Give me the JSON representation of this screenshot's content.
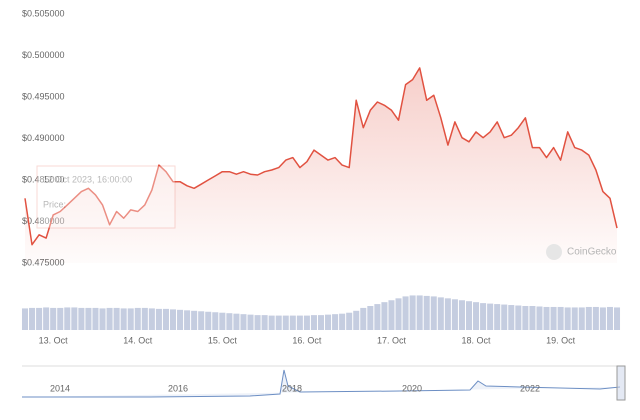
{
  "chart_data": {
    "type": "line",
    "categories": [
      null,
      null,
      null,
      null,
      "13. Oct",
      null,
      null,
      null,
      null,
      null,
      null,
      null,
      null,
      null,
      null,
      null,
      "14. Oct",
      null,
      null,
      null,
      null,
      null,
      null,
      null,
      null,
      null,
      null,
      null,
      "15. Oct",
      null,
      null,
      null,
      null,
      null,
      null,
      null,
      null,
      null,
      null,
      null,
      "16. Oct",
      null,
      null,
      null,
      null,
      null,
      null,
      null,
      null,
      null,
      null,
      null,
      "17. Oct",
      null,
      null,
      null,
      null,
      null,
      null,
      null,
      null,
      null,
      null,
      null,
      "18. Oct",
      null,
      null,
      null,
      null,
      null,
      null,
      null,
      null,
      null,
      null,
      null,
      "19. Oct",
      null,
      null,
      null,
      null,
      null,
      null,
      null,
      null
    ],
    "series": [
      {
        "color": "#e15241",
        "values": [
          0.4828,
          0.4772,
          0.4784,
          0.478,
          0.4808,
          0.4812,
          0.482,
          0.4828,
          0.4836,
          0.484,
          0.4832,
          0.482,
          0.4796,
          0.4812,
          0.4804,
          0.4814,
          0.4812,
          0.482,
          0.4838,
          0.4868,
          0.486,
          0.4848,
          0.4848,
          0.4843,
          0.484,
          0.4845,
          0.485,
          0.4855,
          0.486,
          0.486,
          0.4857,
          0.486,
          0.4857,
          0.4856,
          0.486,
          0.4862,
          0.4865,
          0.4874,
          0.4877,
          0.4865,
          0.4872,
          0.4886,
          0.488,
          0.4874,
          0.4877,
          0.4868,
          0.4865,
          0.4946,
          0.4913,
          0.4934,
          0.4944,
          0.494,
          0.4934,
          0.4922,
          0.4965,
          0.4971,
          0.4985,
          0.4946,
          0.4952,
          0.4925,
          0.4892,
          0.492,
          0.4901,
          0.4896,
          0.4908,
          0.4901,
          0.4908,
          0.492,
          0.4901,
          0.4904,
          0.4913,
          0.4925,
          0.4889,
          0.4889,
          0.4877,
          0.4889,
          0.4874,
          0.4908,
          0.4889,
          0.4886,
          0.488,
          0.4862,
          0.4836,
          0.4828,
          0.4792
        ]
      },
      {
        "color": "#c5cde0",
        "type": "bar",
        "axis": "y2",
        "values": [
          45,
          46,
          46,
          47,
          46,
          46,
          47,
          47,
          46,
          46,
          46,
          45,
          46,
          46,
          45,
          45,
          46,
          46,
          45,
          44,
          44,
          43,
          42,
          41,
          40,
          39,
          38,
          37,
          36,
          35,
          34,
          33,
          32,
          31,
          31,
          30,
          30,
          30,
          30,
          30,
          30,
          31,
          31,
          32,
          33,
          34,
          36,
          40,
          46,
          50,
          54,
          58,
          62,
          66,
          70,
          72,
          72,
          71,
          70,
          68,
          66,
          64,
          62,
          60,
          58,
          56,
          55,
          54,
          53,
          52,
          51,
          50,
          50,
          49,
          48,
          48,
          48,
          47,
          47,
          47,
          48,
          48,
          47,
          48,
          47
        ]
      }
    ],
    "ylim": [
      0.475,
      0.505
    ],
    "yticks": [
      {
        "value": 0.475,
        "label": "$0.475000"
      },
      {
        "value": 0.48,
        "label": "$0.480000"
      },
      {
        "value": 0.485,
        "label": "$0.485000"
      },
      {
        "value": 0.49,
        "label": "$0.490000"
      },
      {
        "value": 0.495,
        "label": "$0.495000"
      },
      {
        "value": 0.5,
        "label": "$0.500000"
      },
      {
        "value": 0.505,
        "label": "$0.505000"
      }
    ],
    "y2lim": [
      0,
      100
    ],
    "grid": false,
    "watermark": "CoinGecko",
    "tooltip": {
      "title": "12 Oct 2023, 16:00:00",
      "price": "Price:"
    },
    "navigator": {
      "labels": [
        "2014",
        "2016",
        "2018",
        "2020",
        "2022"
      ]
    }
  }
}
